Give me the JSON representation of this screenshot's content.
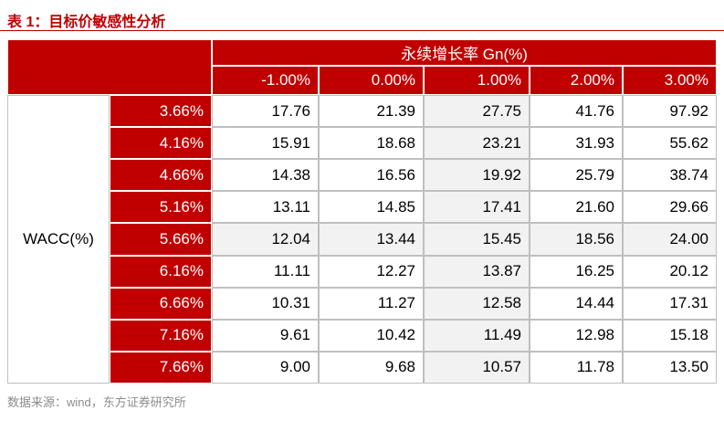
{
  "title": "表 1：目标价敏感性分析",
  "table": {
    "col_group_header": "永续增长率 Gn(%)",
    "row_group_header": "WACC(%)",
    "columns": [
      "-1.00%",
      "0.00%",
      "1.00%",
      "2.00%",
      "3.00%"
    ],
    "rows": [
      {
        "label": "3.66%",
        "cells": [
          "17.76",
          "21.39",
          "27.75",
          "41.76",
          "97.92"
        ]
      },
      {
        "label": "4.16%",
        "cells": [
          "15.91",
          "18.68",
          "23.21",
          "31.93",
          "55.62"
        ]
      },
      {
        "label": "4.66%",
        "cells": [
          "14.38",
          "16.56",
          "19.92",
          "25.79",
          "38.74"
        ]
      },
      {
        "label": "5.16%",
        "cells": [
          "13.11",
          "14.85",
          "17.41",
          "21.60",
          "29.66"
        ]
      },
      {
        "label": "5.66%",
        "cells": [
          "12.04",
          "13.44",
          "15.45",
          "18.56",
          "24.00"
        ]
      },
      {
        "label": "6.16%",
        "cells": [
          "11.11",
          "12.27",
          "13.87",
          "16.25",
          "20.12"
        ]
      },
      {
        "label": "6.66%",
        "cells": [
          "10.31",
          "11.27",
          "12.58",
          "14.44",
          "17.31"
        ]
      },
      {
        "label": "7.16%",
        "cells": [
          "9.61",
          "10.42",
          "11.49",
          "12.98",
          "15.18"
        ]
      },
      {
        "label": "7.66%",
        "cells": [
          "9.00",
          "9.68",
          "10.57",
          "11.78",
          "13.50"
        ]
      }
    ]
  },
  "source": "数据来源：wind，东方证券研究所"
}
